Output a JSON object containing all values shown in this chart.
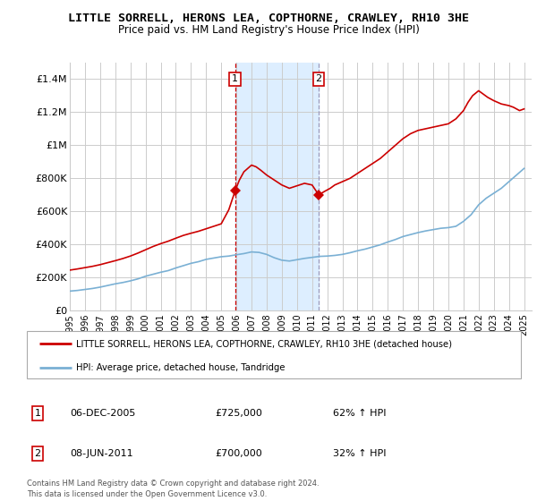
{
  "title": "LITTLE SORRELL, HERONS LEA, COPTHORNE, CRAWLEY, RH10 3HE",
  "subtitle": "Price paid vs. HM Land Registry's House Price Index (HPI)",
  "legend_line1": "LITTLE SORRELL, HERONS LEA, COPTHORNE, CRAWLEY, RH10 3HE (detached house)",
  "legend_line2": "HPI: Average price, detached house, Tandridge",
  "sale1_date": "06-DEC-2005",
  "sale1_price": "£725,000",
  "sale1_hpi": "62% ↑ HPI",
  "sale1_year": 2005.92,
  "sale1_value": 725000,
  "sale2_date": "08-JUN-2011",
  "sale2_price": "£700,000",
  "sale2_hpi": "32% ↑ HPI",
  "sale2_year": 2011.44,
  "sale2_value": 700000,
  "footer1": "Contains HM Land Registry data © Crown copyright and database right 2024.",
  "footer2": "This data is licensed under the Open Government Licence v3.0.",
  "ylim": [
    0,
    1500000
  ],
  "yticks": [
    0,
    200000,
    400000,
    600000,
    800000,
    1000000,
    1200000,
    1400000
  ],
  "ytick_labels": [
    "£0",
    "£200K",
    "£400K",
    "£600K",
    "£800K",
    "£1M",
    "£1.2M",
    "£1.4M"
  ],
  "xmin": 1995,
  "xmax": 2025.5,
  "background_color": "#ffffff",
  "grid_color": "#cccccc",
  "shade_color": "#ddeeff",
  "red_color": "#cc0000",
  "blue_color": "#7ab0d4",
  "marker_box_color": "#cc0000",
  "hpi_years": [
    1995.0,
    1995.5,
    1996.0,
    1996.5,
    1997.0,
    1997.5,
    1998.0,
    1998.5,
    1999.0,
    1999.5,
    2000.0,
    2000.5,
    2001.0,
    2001.5,
    2002.0,
    2002.5,
    2003.0,
    2003.5,
    2004.0,
    2004.5,
    2005.0,
    2005.5,
    2006.0,
    2006.5,
    2007.0,
    2007.5,
    2008.0,
    2008.5,
    2009.0,
    2009.5,
    2010.0,
    2010.5,
    2011.0,
    2011.5,
    2012.0,
    2012.5,
    2013.0,
    2013.5,
    2014.0,
    2014.5,
    2015.0,
    2015.5,
    2016.0,
    2016.5,
    2017.0,
    2017.5,
    2018.0,
    2018.5,
    2019.0,
    2019.5,
    2020.0,
    2020.5,
    2021.0,
    2021.5,
    2022.0,
    2022.5,
    2023.0,
    2023.5,
    2024.0,
    2024.5,
    2025.0
  ],
  "hpi_values": [
    118000,
    122000,
    128000,
    134000,
    142000,
    152000,
    162000,
    170000,
    180000,
    192000,
    208000,
    220000,
    232000,
    242000,
    258000,
    272000,
    286000,
    296000,
    310000,
    318000,
    326000,
    330000,
    338000,
    345000,
    355000,
    352000,
    340000,
    320000,
    305000,
    300000,
    308000,
    316000,
    322000,
    328000,
    330000,
    334000,
    340000,
    350000,
    362000,
    372000,
    385000,
    398000,
    415000,
    430000,
    448000,
    460000,
    472000,
    482000,
    490000,
    498000,
    502000,
    510000,
    540000,
    580000,
    640000,
    680000,
    710000,
    740000,
    780000,
    820000,
    860000
  ],
  "prop_years": [
    1995.0,
    1995.5,
    1996.0,
    1996.5,
    1997.0,
    1997.5,
    1998.0,
    1998.5,
    1999.0,
    1999.5,
    2000.0,
    2000.5,
    2001.0,
    2001.5,
    2002.0,
    2002.5,
    2003.0,
    2003.5,
    2004.0,
    2004.5,
    2005.0,
    2005.5,
    2005.92,
    2006.2,
    2006.5,
    2007.0,
    2007.3,
    2007.6,
    2008.0,
    2008.5,
    2009.0,
    2009.5,
    2010.0,
    2010.5,
    2011.0,
    2011.44,
    2011.8,
    2012.2,
    2012.5,
    2013.0,
    2013.5,
    2014.0,
    2014.5,
    2015.0,
    2015.5,
    2016.0,
    2016.5,
    2017.0,
    2017.5,
    2018.0,
    2018.5,
    2019.0,
    2019.5,
    2020.0,
    2020.5,
    2021.0,
    2021.3,
    2021.6,
    2022.0,
    2022.3,
    2022.6,
    2023.0,
    2023.5,
    2024.0,
    2024.3,
    2024.7,
    2025.0
  ],
  "prop_values": [
    245000,
    252000,
    260000,
    268000,
    278000,
    290000,
    302000,
    315000,
    330000,
    348000,
    368000,
    388000,
    405000,
    420000,
    438000,
    455000,
    468000,
    480000,
    495000,
    510000,
    525000,
    610000,
    725000,
    790000,
    840000,
    880000,
    870000,
    850000,
    820000,
    790000,
    760000,
    740000,
    755000,
    770000,
    760000,
    700000,
    720000,
    740000,
    760000,
    780000,
    800000,
    830000,
    860000,
    890000,
    920000,
    960000,
    1000000,
    1040000,
    1070000,
    1090000,
    1100000,
    1110000,
    1120000,
    1130000,
    1160000,
    1210000,
    1260000,
    1300000,
    1330000,
    1310000,
    1290000,
    1270000,
    1250000,
    1240000,
    1230000,
    1210000,
    1220000
  ]
}
